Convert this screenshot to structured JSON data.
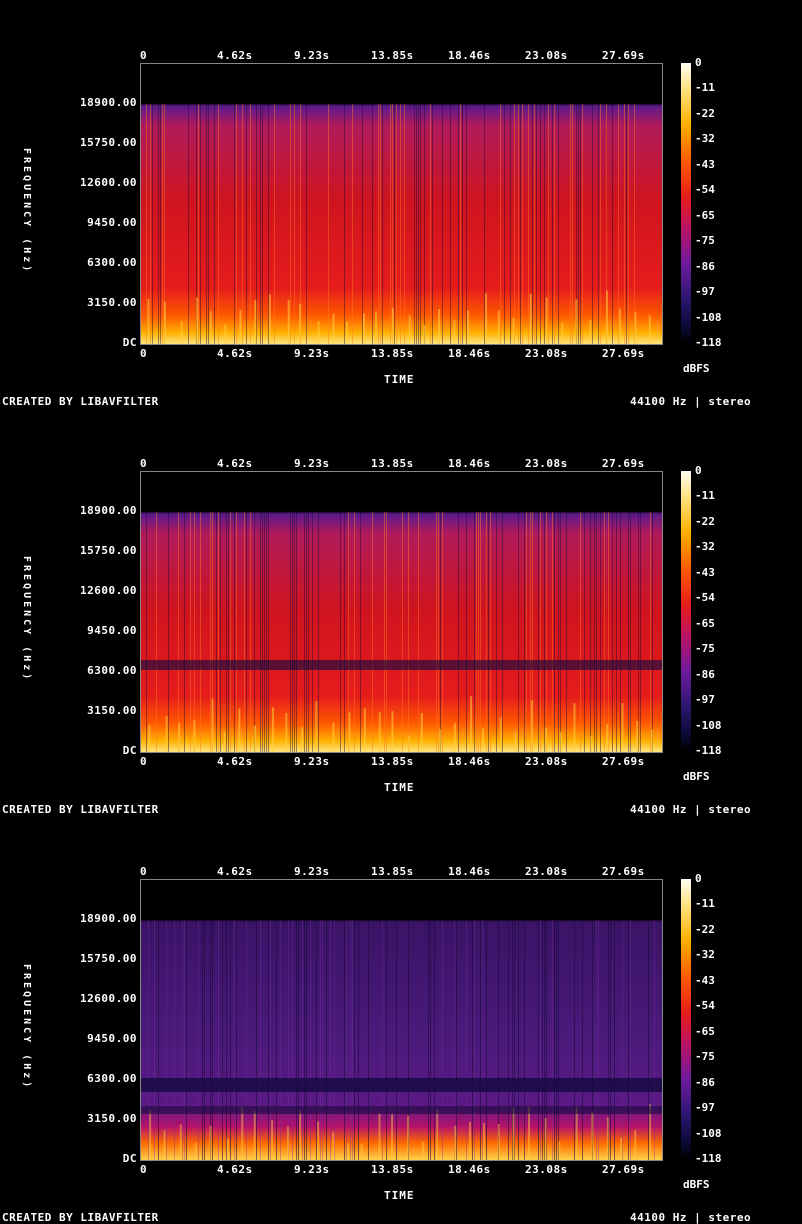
{
  "chart_data": [
    {
      "type": "heatmap",
      "xlabel": "TIME",
      "ylabel": "FREQUENCY (Hz)",
      "x_ticks": [
        "0",
        "4.62s",
        "9.23s",
        "13.85s",
        "18.46s",
        "23.08s",
        "27.69s"
      ],
      "y_ticks": [
        "18900.00",
        "15750.00",
        "12600.00",
        "9450.00",
        "6300.00",
        "3150.00",
        "DC"
      ],
      "colorbar_ticks": [
        "0",
        "-11",
        "-22",
        "-32",
        "-43",
        "-54",
        "-65",
        "-75",
        "-86",
        "-97",
        "-108",
        "-118"
      ],
      "colorbar_unit": "dBFS",
      "xlim": [
        0,
        31.3
      ],
      "ylim": [
        0,
        22050
      ],
      "cutoff_hz": 18900,
      "footer_left": "CREATED BY LIBAVFILTER",
      "footer_right": "44100 Hz | stereo"
    },
    {
      "type": "heatmap",
      "xlabel": "TIME",
      "ylabel": "FREQUENCY (Hz)",
      "x_ticks": [
        "0",
        "4.62s",
        "9.23s",
        "13.85s",
        "18.46s",
        "23.08s",
        "27.69s"
      ],
      "y_ticks": [
        "18900.00",
        "15750.00",
        "12600.00",
        "9450.00",
        "6300.00",
        "3150.00",
        "DC"
      ],
      "colorbar_ticks": [
        "0",
        "-11",
        "-22",
        "-32",
        "-43",
        "-54",
        "-65",
        "-75",
        "-86",
        "-97",
        "-108",
        "-118"
      ],
      "colorbar_unit": "dBFS",
      "xlim": [
        0,
        31.3
      ],
      "ylim": [
        0,
        22050
      ],
      "cutoff_hz": 18900,
      "footer_left": "CREATED BY LIBAVFILTER",
      "footer_right": "44100 Hz | stereo"
    },
    {
      "type": "heatmap",
      "xlabel": "TIME",
      "ylabel": "FREQUENCY (Hz)",
      "x_ticks": [
        "0",
        "4.62s",
        "9.23s",
        "13.85s",
        "18.46s",
        "23.08s",
        "27.69s"
      ],
      "y_ticks": [
        "18900.00",
        "15750.00",
        "12600.00",
        "9450.00",
        "6300.00",
        "3150.00",
        "DC"
      ],
      "colorbar_ticks": [
        "0",
        "-11",
        "-22",
        "-32",
        "-43",
        "-54",
        "-65",
        "-75",
        "-86",
        "-97",
        "-108",
        "-118"
      ],
      "colorbar_unit": "dBFS",
      "xlim": [
        0,
        31.3
      ],
      "ylim": [
        0,
        22050
      ],
      "cutoff_hz": 18900,
      "footer_left": "CREATED BY LIBAVFILTER",
      "footer_right": "44100 Hz | stereo"
    }
  ]
}
